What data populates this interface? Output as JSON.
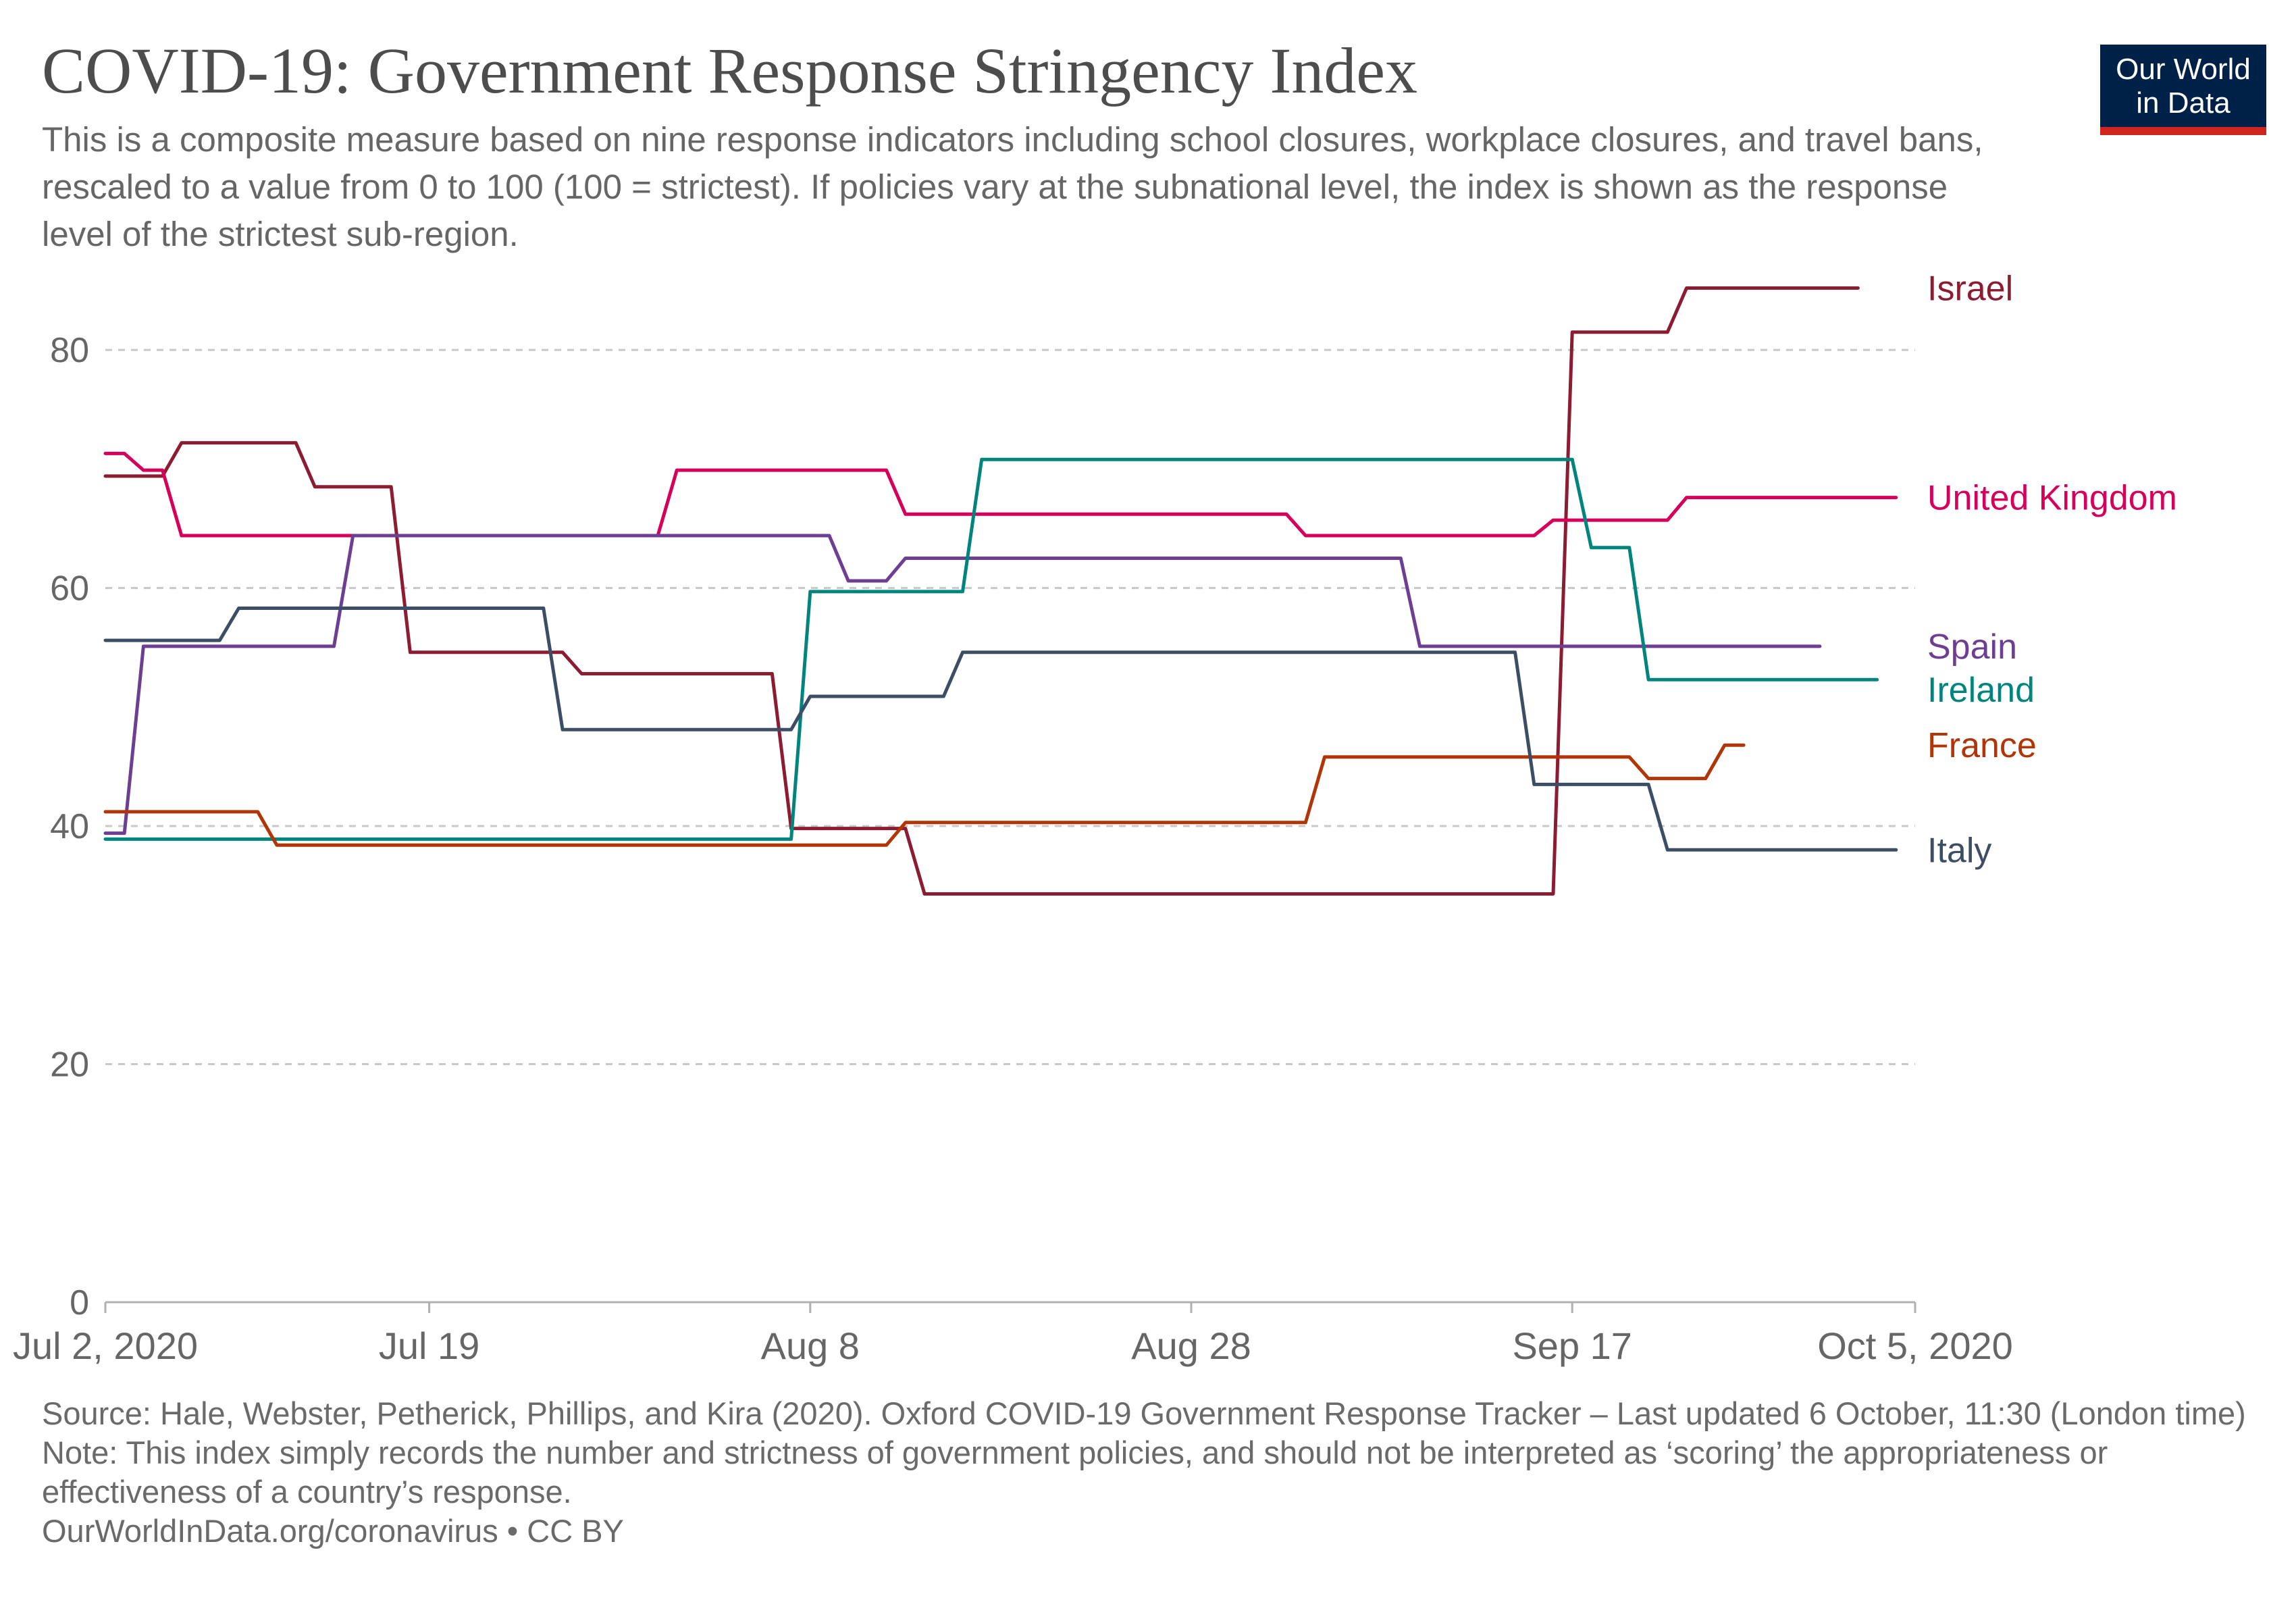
{
  "header": {
    "title": "COVID-19: Government Response Stringency Index",
    "subtitle": "This is a composite measure based on nine response indicators including school closures, workplace closures, and travel bans, rescaled to a value from 0 to 100 (100 = strictest). If policies vary at the subnational level, the index is shown as the response level of the strictest sub-region."
  },
  "logo": {
    "line1": "Our World",
    "line2": "in Data",
    "bg_color": "#002147",
    "accent_color": "#ce261e"
  },
  "footer": {
    "source": "Source: Hale, Webster, Petherick, Phillips, and Kira (2020). Oxford COVID-19 Government Response Tracker – Last updated 6 October, 11:30 (London time)",
    "note": "Note: This index simply records the number and strictness of government policies, and should not be interpreted as ‘scoring’ the appropriateness or effectiveness of a country’s response.",
    "url": "OurWorldInData.org/coronavirus • CC BY"
  },
  "chart_data": {
    "type": "line",
    "title": "COVID-19: Government Response Stringency Index",
    "xlabel": "",
    "ylabel": "",
    "x_range": [
      "2020-07-02",
      "2020-10-05"
    ],
    "ylim": [
      0,
      85
    ],
    "y_ticks": [
      0,
      20,
      40,
      60,
      80
    ],
    "x_ticks": [
      {
        "date": "2020-07-02",
        "label": "Jul 2, 2020"
      },
      {
        "date": "2020-07-19",
        "label": "Jul 19"
      },
      {
        "date": "2020-08-08",
        "label": "Aug 8"
      },
      {
        "date": "2020-08-28",
        "label": "Aug 28"
      },
      {
        "date": "2020-09-17",
        "label": "Sep 17"
      },
      {
        "date": "2020-10-05",
        "label": "Oct 5, 2020"
      }
    ],
    "grid": true,
    "legend": "right end labels",
    "series": [
      {
        "name": "Israel",
        "color": "#8c1c31",
        "points": [
          [
            "2020-07-02",
            69.4
          ],
          [
            "2020-07-05",
            69.4
          ],
          [
            "2020-07-06",
            72.2
          ],
          [
            "2020-07-12",
            72.2
          ],
          [
            "2020-07-13",
            68.5
          ],
          [
            "2020-07-17",
            68.5
          ],
          [
            "2020-07-18",
            54.6
          ],
          [
            "2020-07-26",
            54.6
          ],
          [
            "2020-07-27",
            52.8
          ],
          [
            "2020-08-06",
            52.8
          ],
          [
            "2020-08-07",
            39.8
          ],
          [
            "2020-08-13",
            39.8
          ],
          [
            "2020-08-14",
            34.3
          ],
          [
            "2020-09-16",
            34.3
          ],
          [
            "2020-09-17",
            81.5
          ],
          [
            "2020-09-22",
            81.5
          ],
          [
            "2020-09-23",
            85.2
          ],
          [
            "2020-10-02",
            85.2
          ]
        ]
      },
      {
        "name": "United Kingdom",
        "color": "#d6005a",
        "points": [
          [
            "2020-07-02",
            71.3
          ],
          [
            "2020-07-03",
            71.3
          ],
          [
            "2020-07-04",
            69.9
          ],
          [
            "2020-07-05",
            69.9
          ],
          [
            "2020-07-06",
            64.4
          ],
          [
            "2020-07-31",
            64.4
          ],
          [
            "2020-08-01",
            69.9
          ],
          [
            "2020-08-12",
            69.9
          ],
          [
            "2020-08-13",
            66.2
          ],
          [
            "2020-09-02",
            66.2
          ],
          [
            "2020-09-03",
            64.4
          ],
          [
            "2020-09-15",
            64.4
          ],
          [
            "2020-09-16",
            65.7
          ],
          [
            "2020-09-22",
            65.7
          ],
          [
            "2020-09-23",
            67.6
          ],
          [
            "2020-10-04",
            67.6
          ]
        ]
      },
      {
        "name": "Spain",
        "color": "#6d3e91",
        "points": [
          [
            "2020-07-02",
            39.4
          ],
          [
            "2020-07-03",
            39.4
          ],
          [
            "2020-07-04",
            55.1
          ],
          [
            "2020-07-14",
            55.1
          ],
          [
            "2020-07-15",
            64.4
          ],
          [
            "2020-08-09",
            64.4
          ],
          [
            "2020-08-10",
            60.6
          ],
          [
            "2020-08-12",
            60.6
          ],
          [
            "2020-08-13",
            62.5
          ],
          [
            "2020-09-08",
            62.5
          ],
          [
            "2020-09-09",
            55.1
          ],
          [
            "2020-09-30",
            55.1
          ]
        ]
      },
      {
        "name": "Ireland",
        "color": "#00847e",
        "points": [
          [
            "2020-07-02",
            38.9
          ],
          [
            "2020-08-07",
            38.9
          ],
          [
            "2020-08-08",
            59.7
          ],
          [
            "2020-08-16",
            59.7
          ],
          [
            "2020-08-17",
            70.8
          ],
          [
            "2020-09-17",
            70.8
          ],
          [
            "2020-09-18",
            63.4
          ],
          [
            "2020-09-20",
            63.4
          ],
          [
            "2020-09-21",
            52.3
          ],
          [
            "2020-10-03",
            52.3
          ]
        ]
      },
      {
        "name": "France",
        "color": "#b13507",
        "points": [
          [
            "2020-07-02",
            41.2
          ],
          [
            "2020-07-10",
            41.2
          ],
          [
            "2020-07-11",
            38.4
          ],
          [
            "2020-08-12",
            38.4
          ],
          [
            "2020-08-13",
            40.3
          ],
          [
            "2020-09-03",
            40.3
          ],
          [
            "2020-09-04",
            45.8
          ],
          [
            "2020-09-20",
            45.8
          ],
          [
            "2020-09-21",
            44
          ],
          [
            "2020-09-24",
            44
          ],
          [
            "2020-09-25",
            46.8
          ],
          [
            "2020-09-26",
            46.8
          ]
        ]
      },
      {
        "name": "Italy",
        "color": "#3c4e66",
        "points": [
          [
            "2020-07-02",
            55.6
          ],
          [
            "2020-07-08",
            55.6
          ],
          [
            "2020-07-09",
            58.3
          ],
          [
            "2020-07-25",
            58.3
          ],
          [
            "2020-07-26",
            48.1
          ],
          [
            "2020-08-07",
            48.1
          ],
          [
            "2020-08-08",
            50.9
          ],
          [
            "2020-08-15",
            50.9
          ],
          [
            "2020-08-16",
            54.6
          ],
          [
            "2020-09-14",
            54.6
          ],
          [
            "2020-09-15",
            43.5
          ],
          [
            "2020-09-21",
            43.5
          ],
          [
            "2020-09-22",
            38
          ],
          [
            "2020-10-04",
            38
          ]
        ]
      }
    ]
  }
}
